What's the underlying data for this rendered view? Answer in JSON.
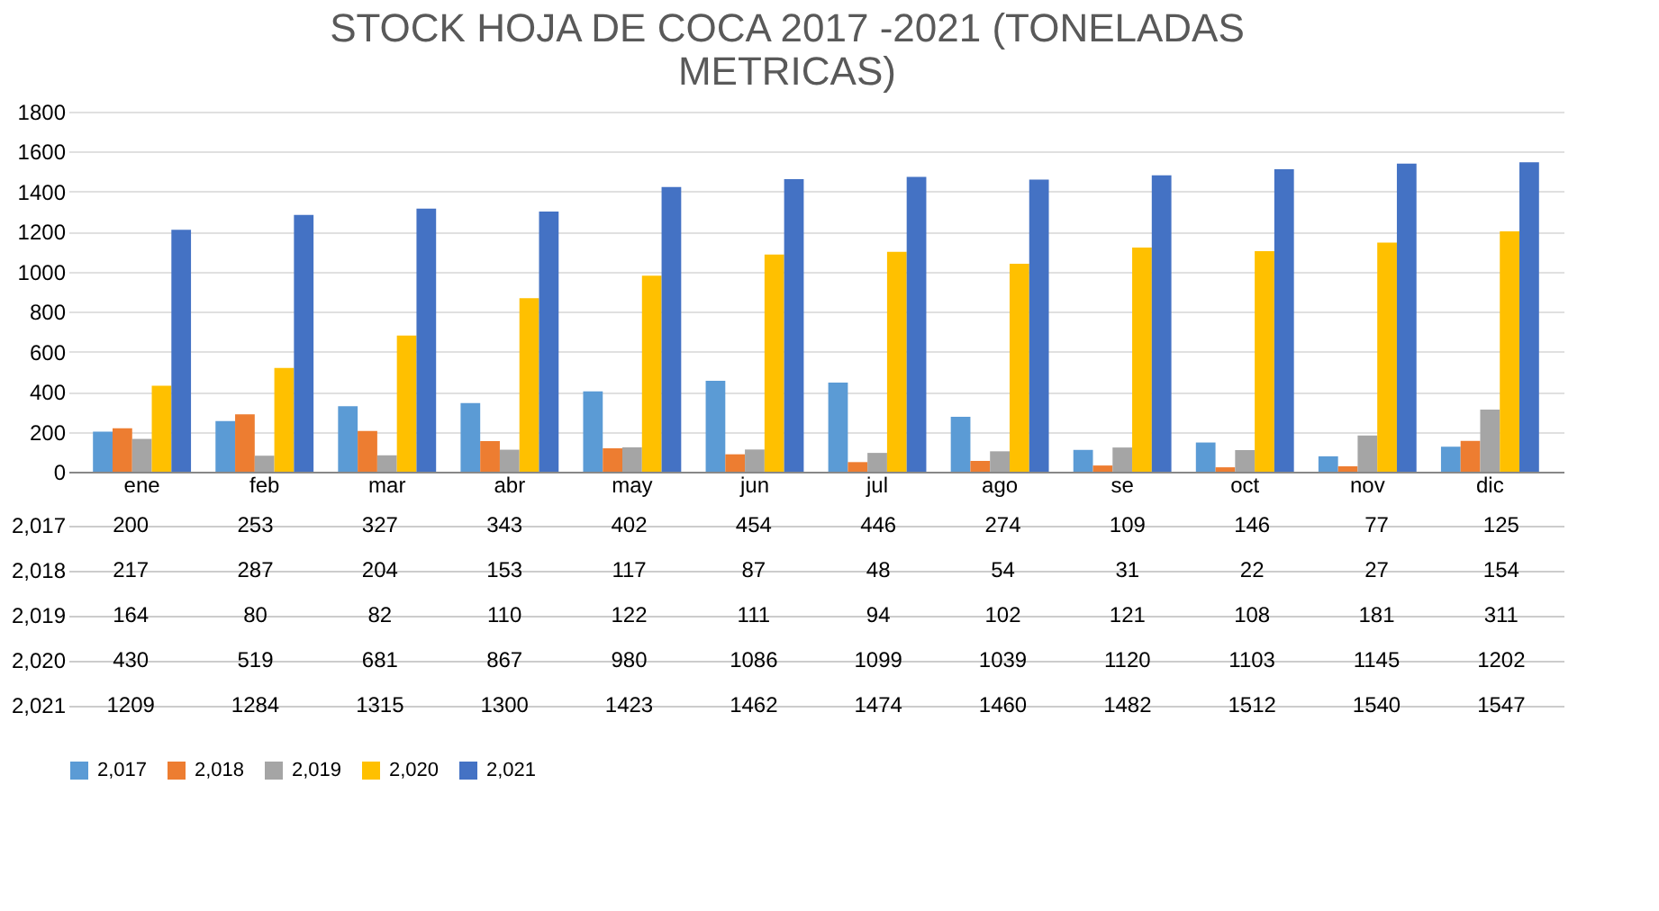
{
  "chart_data": {
    "type": "bar",
    "title": "STOCK HOJA DE COCA 2017 -2021 (TONELADAS METRICAS)",
    "categories": [
      "ene",
      "feb",
      "mar",
      "abr",
      "may",
      "jun",
      "jul",
      "ago",
      "se",
      "oct",
      "nov",
      "dic"
    ],
    "series": [
      {
        "name": "2,017",
        "color": "#5b9bd5",
        "values": [
          200,
          253,
          327,
          343,
          402,
          454,
          446,
          274,
          109,
          146,
          77,
          125
        ]
      },
      {
        "name": "2,018",
        "color": "#ed7d31",
        "values": [
          217,
          287,
          204,
          153,
          117,
          87,
          48,
          54,
          31,
          22,
          27,
          154
        ]
      },
      {
        "name": "2,019",
        "color": "#a5a5a5",
        "values": [
          164,
          80,
          82,
          110,
          122,
          111,
          94,
          102,
          121,
          108,
          181,
          311
        ]
      },
      {
        "name": "2,020",
        "color": "#ffc000",
        "values": [
          430,
          519,
          681,
          867,
          980,
          1086,
          1099,
          1039,
          1120,
          1103,
          1145,
          1202
        ]
      },
      {
        "name": "2,021",
        "color": "#4472c4",
        "values": [
          1209,
          1284,
          1315,
          1300,
          1423,
          1462,
          1474,
          1460,
          1482,
          1512,
          1540,
          1547
        ]
      }
    ],
    "ylim": [
      0,
      1800
    ],
    "yticks": [
      0,
      200,
      400,
      600,
      800,
      1000,
      1200,
      1400,
      1600,
      1800
    ],
    "grid": "y",
    "legend": "bottom",
    "data_labels": true
  }
}
